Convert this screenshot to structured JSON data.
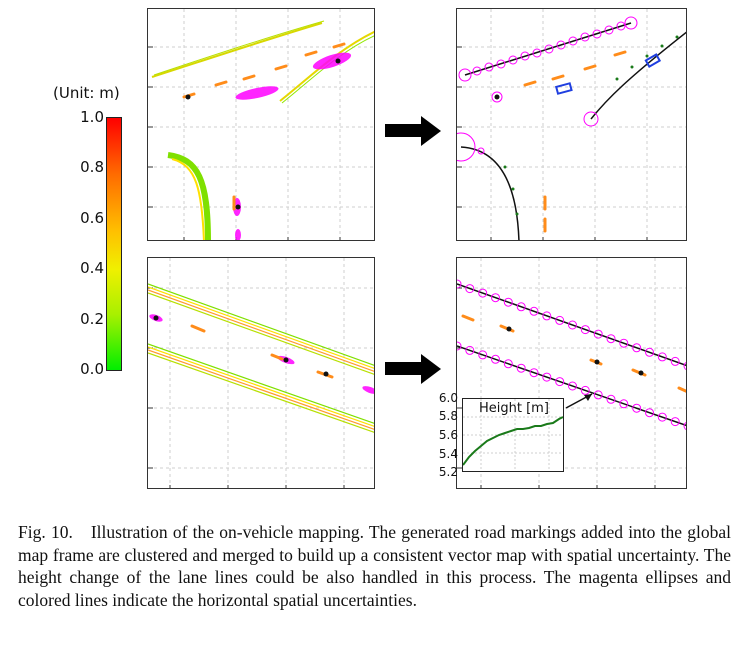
{
  "figure": {
    "colorbar": {
      "unit": "(Unit: m)",
      "ticks": [
        "1.0",
        "0.8",
        "0.6",
        "0.4",
        "0.2",
        "0.0"
      ],
      "colors": [
        "#ff0000",
        "#ff6a00",
        "#ffc000",
        "#f0f000",
        "#a8f000",
        "#00ee00"
      ]
    },
    "inset": {
      "title": "Height [m]",
      "yticks": [
        "6.0",
        "5.8",
        "5.6",
        "5.4",
        "5.2"
      ],
      "line_color": "#1a7a1a"
    },
    "colors": {
      "uncertainty_ellipse": "#ff00ff",
      "lane_center": "#111111",
      "marker_orange": "#ff8c1a",
      "marker_blue": "#1f3fe0",
      "arrow": "#000000"
    }
  },
  "caption": {
    "label": "Fig. 10.",
    "text": "Illustration of the on-vehicle mapping. The generated road markings added into the global map frame are clustered and merged to build up a consistent vector map with spatial uncertainty. The height change of the lane lines could be also handled in this process. The magenta ellipses and colored lines indicate the horizontal spatial uncertainties."
  }
}
